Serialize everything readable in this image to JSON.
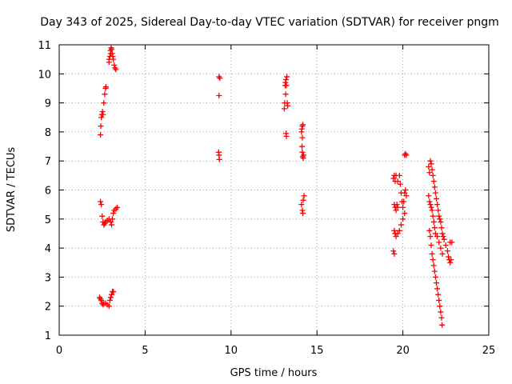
{
  "chart_data": {
    "type": "scatter",
    "title": "Day 343 of 2025, Sidereal Day-to-day VTEC variation (SDTVAR) for receiver pngm",
    "xlabel": "GPS time / hours",
    "ylabel": "SDTVAR / TECUs",
    "xlim": [
      0,
      25
    ],
    "ylim": [
      1,
      11
    ],
    "xticks": [
      "0",
      "5",
      "10",
      "15",
      "20",
      "25"
    ],
    "yticks": [
      "1",
      "2",
      "3",
      "4",
      "5",
      "6",
      "7",
      "8",
      "9",
      "10",
      "11"
    ],
    "grid": true,
    "marker": "plus",
    "color": "#ff0000",
    "series": [
      {
        "name": "SDTVAR",
        "points": [
          [
            2.4,
            7.9
          ],
          [
            2.42,
            8.2
          ],
          [
            2.45,
            8.5
          ],
          [
            2.48,
            8.6
          ],
          [
            2.52,
            8.7
          ],
          [
            2.55,
            8.6
          ],
          [
            2.6,
            9.0
          ],
          [
            2.65,
            9.3
          ],
          [
            2.7,
            9.5
          ],
          [
            2.72,
            9.55
          ],
          [
            2.9,
            10.5
          ],
          [
            2.95,
            10.6
          ],
          [
            2.98,
            10.8
          ],
          [
            3.02,
            10.9
          ],
          [
            3.05,
            10.85
          ],
          [
            3.08,
            10.7
          ],
          [
            3.12,
            10.6
          ],
          [
            3.15,
            10.5
          ],
          [
            3.2,
            10.3
          ],
          [
            3.25,
            10.2
          ],
          [
            3.3,
            10.15
          ],
          [
            2.9,
            10.4
          ],
          [
            3.0,
            10.7
          ],
          [
            2.4,
            5.6
          ],
          [
            2.45,
            5.5
          ],
          [
            2.5,
            5.1
          ],
          [
            2.55,
            4.9
          ],
          [
            2.6,
            4.8
          ],
          [
            2.65,
            4.85
          ],
          [
            2.7,
            4.9
          ],
          [
            2.8,
            4.95
          ],
          [
            2.9,
            5.0
          ],
          [
            3.0,
            4.9
          ],
          [
            3.05,
            4.8
          ],
          [
            3.1,
            5.0
          ],
          [
            3.15,
            5.2
          ],
          [
            3.2,
            5.3
          ],
          [
            3.3,
            5.35
          ],
          [
            3.38,
            5.4
          ],
          [
            2.35,
            2.3
          ],
          [
            2.4,
            2.25
          ],
          [
            2.45,
            2.2
          ],
          [
            2.5,
            2.1
          ],
          [
            2.55,
            2.05
          ],
          [
            2.6,
            2.1
          ],
          [
            2.7,
            2.1
          ],
          [
            2.8,
            2.05
          ],
          [
            2.9,
            2.0
          ],
          [
            2.95,
            2.2
          ],
          [
            3.0,
            2.3
          ],
          [
            3.05,
            2.4
          ],
          [
            3.1,
            2.5
          ],
          [
            3.15,
            2.5
          ],
          [
            9.3,
            9.9
          ],
          [
            9.35,
            9.85
          ],
          [
            9.3,
            9.25
          ],
          [
            9.28,
            7.3
          ],
          [
            9.3,
            7.2
          ],
          [
            9.32,
            7.05
          ],
          [
            13.1,
            8.8
          ],
          [
            13.12,
            9.0
          ],
          [
            13.15,
            9.6
          ],
          [
            13.17,
            9.7
          ],
          [
            13.2,
            9.8
          ],
          [
            13.22,
            9.6
          ],
          [
            13.25,
            9.9
          ],
          [
            13.27,
            9.0
          ],
          [
            13.3,
            8.9
          ],
          [
            13.2,
            7.95
          ],
          [
            13.22,
            7.85
          ],
          [
            13.18,
            9.3
          ],
          [
            14.1,
            8.0
          ],
          [
            14.12,
            8.1
          ],
          [
            14.15,
            8.2
          ],
          [
            14.18,
            8.25
          ],
          [
            14.15,
            7.8
          ],
          [
            14.13,
            7.5
          ],
          [
            14.15,
            7.3
          ],
          [
            14.17,
            7.15
          ],
          [
            14.2,
            7.1
          ],
          [
            14.22,
            7.2
          ],
          [
            14.1,
            5.5
          ],
          [
            14.15,
            5.3
          ],
          [
            14.18,
            5.2
          ],
          [
            14.2,
            5.65
          ],
          [
            14.25,
            5.8
          ],
          [
            19.45,
            6.4
          ],
          [
            19.5,
            6.5
          ],
          [
            19.55,
            6.3
          ],
          [
            19.6,
            6.5
          ],
          [
            19.7,
            6.3
          ],
          [
            19.8,
            6.5
          ],
          [
            19.85,
            6.2
          ],
          [
            19.9,
            5.9
          ],
          [
            19.95,
            5.6
          ],
          [
            20.0,
            5.4
          ],
          [
            20.05,
            5.6
          ],
          [
            20.1,
            5.9
          ],
          [
            20.15,
            6.0
          ],
          [
            20.2,
            5.8
          ],
          [
            19.5,
            5.5
          ],
          [
            19.55,
            5.4
          ],
          [
            19.6,
            5.3
          ],
          [
            19.65,
            5.5
          ],
          [
            19.7,
            5.4
          ],
          [
            19.5,
            4.6
          ],
          [
            19.55,
            4.5
          ],
          [
            19.6,
            4.4
          ],
          [
            19.7,
            4.5
          ],
          [
            19.8,
            4.6
          ],
          [
            19.9,
            4.8
          ],
          [
            20.0,
            5.0
          ],
          [
            20.1,
            5.2
          ],
          [
            19.45,
            3.9
          ],
          [
            19.5,
            3.8
          ],
          [
            20.1,
            7.2
          ],
          [
            20.15,
            7.25
          ],
          [
            20.2,
            7.2
          ],
          [
            21.5,
            6.8
          ],
          [
            21.55,
            6.6
          ],
          [
            21.6,
            7.0
          ],
          [
            21.65,
            6.9
          ],
          [
            21.7,
            6.7
          ],
          [
            21.75,
            6.5
          ],
          [
            21.8,
            6.3
          ],
          [
            21.85,
            6.1
          ],
          [
            21.9,
            5.9
          ],
          [
            21.95,
            5.7
          ],
          [
            22.0,
            5.5
          ],
          [
            22.05,
            5.3
          ],
          [
            22.1,
            5.1
          ],
          [
            22.15,
            5.0
          ],
          [
            22.2,
            4.9
          ],
          [
            22.25,
            4.7
          ],
          [
            22.3,
            4.5
          ],
          [
            22.35,
            4.4
          ],
          [
            22.4,
            4.3
          ],
          [
            22.5,
            4.1
          ],
          [
            22.6,
            3.9
          ],
          [
            22.65,
            3.7
          ],
          [
            22.7,
            3.6
          ],
          [
            22.75,
            3.5
          ],
          [
            22.8,
            3.6
          ],
          [
            22.85,
            4.2
          ],
          [
            22.75,
            4.2
          ],
          [
            21.5,
            5.8
          ],
          [
            21.55,
            5.6
          ],
          [
            21.6,
            5.5
          ],
          [
            21.65,
            5.4
          ],
          [
            21.7,
            5.3
          ],
          [
            21.75,
            5.1
          ],
          [
            21.8,
            4.9
          ],
          [
            21.85,
            4.7
          ],
          [
            21.9,
            4.5
          ],
          [
            22.0,
            4.4
          ],
          [
            22.1,
            4.2
          ],
          [
            22.2,
            4.0
          ],
          [
            22.3,
            3.8
          ],
          [
            21.55,
            4.6
          ],
          [
            21.6,
            4.4
          ],
          [
            21.65,
            4.1
          ],
          [
            21.7,
            3.8
          ],
          [
            21.75,
            3.6
          ],
          [
            21.8,
            3.4
          ],
          [
            21.85,
            3.2
          ],
          [
            21.9,
            3.0
          ],
          [
            21.95,
            2.8
          ],
          [
            22.0,
            2.6
          ],
          [
            22.05,
            2.4
          ],
          [
            22.1,
            2.2
          ],
          [
            22.15,
            2.0
          ],
          [
            22.2,
            1.8
          ],
          [
            22.25,
            1.6
          ],
          [
            22.28,
            1.35
          ]
        ]
      }
    ]
  }
}
